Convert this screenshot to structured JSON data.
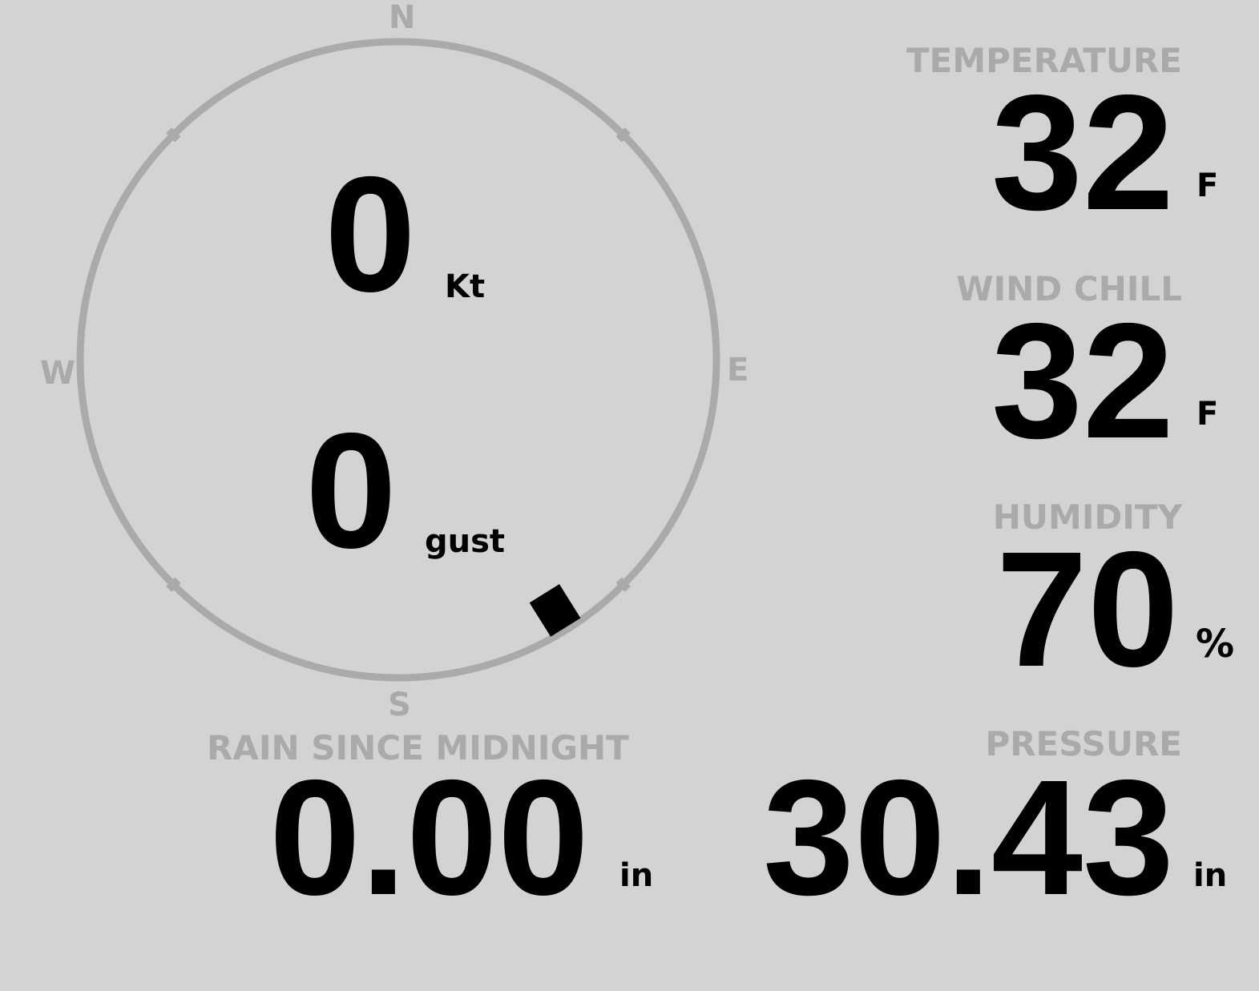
{
  "wind": {
    "speed": "0",
    "speed_unit": "Kt",
    "gust": "0",
    "gust_unit": "gust",
    "direction_deg": 148,
    "cardinals": {
      "n": "N",
      "e": "E",
      "s": "S",
      "w": "W"
    }
  },
  "temperature": {
    "label": "TEMPERATURE",
    "value": "32",
    "unit": "F"
  },
  "wind_chill": {
    "label": "WIND CHILL",
    "value": "32",
    "unit": "F"
  },
  "humidity": {
    "label": "HUMIDITY",
    "value": "70",
    "unit": "%"
  },
  "rain": {
    "label": "RAIN SINCE MIDNIGHT",
    "value": "0.00",
    "unit": "in"
  },
  "pressure": {
    "label": "PRESSURE",
    "value": "30.43",
    "unit": "in"
  },
  "colors": {
    "background": "#d3d3d3",
    "ring": "#aaaaaa",
    "label": "#aaaaaa",
    "value": "#000000"
  }
}
